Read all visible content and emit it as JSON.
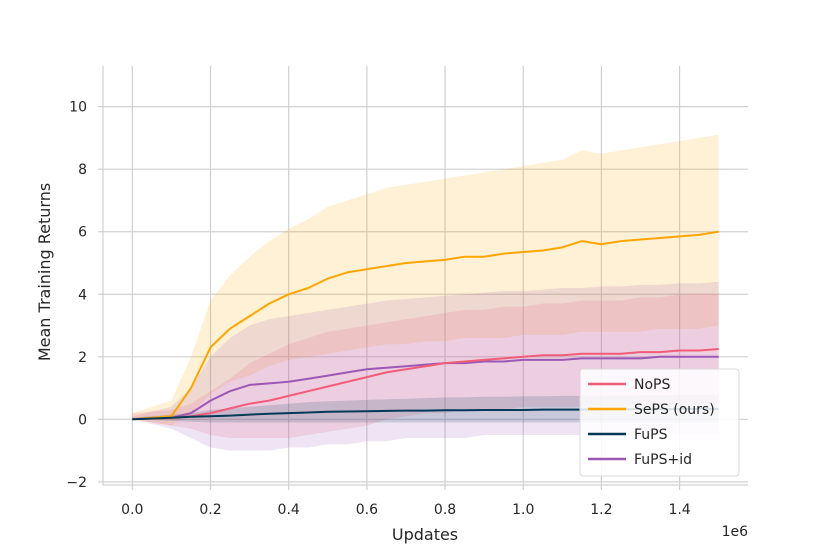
{
  "chart_data": {
    "type": "line",
    "title": "",
    "xlabel": "Updates",
    "ylabel": "Mean Training Returns",
    "x_offset_label": "1e6",
    "xlim": [
      -0.075,
      1.575
    ],
    "ylim": [
      -2.1,
      11.3
    ],
    "x_ticks": [
      0.0,
      0.2,
      0.4,
      0.6,
      0.8,
      1.0,
      1.2,
      1.4
    ],
    "x_tick_labels": [
      "0.0",
      "0.2",
      "0.4",
      "0.6",
      "0.8",
      "1.0",
      "1.2",
      "1.4"
    ],
    "y_ticks": [
      -2,
      0,
      2,
      4,
      6,
      8,
      10
    ],
    "y_tick_labels": [
      "−2",
      "0",
      "2",
      "4",
      "6",
      "8",
      "10"
    ],
    "grid": true,
    "legend_position": "bottom-right",
    "series": [
      {
        "name": "NoPS",
        "color": "#f25c78",
        "x": [
          0.0,
          0.1,
          0.15,
          0.2,
          0.25,
          0.3,
          0.35,
          0.4,
          0.45,
          0.5,
          0.55,
          0.6,
          0.65,
          0.7,
          0.75,
          0.8,
          0.85,
          0.9,
          0.95,
          1.0,
          1.05,
          1.1,
          1.15,
          1.2,
          1.25,
          1.3,
          1.35,
          1.4,
          1.45,
          1.5
        ],
        "values": [
          0.0,
          0.05,
          0.1,
          0.2,
          0.35,
          0.5,
          0.6,
          0.75,
          0.9,
          1.05,
          1.2,
          1.35,
          1.5,
          1.6,
          1.7,
          1.8,
          1.85,
          1.9,
          1.95,
          2.0,
          2.05,
          2.05,
          2.1,
          2.1,
          2.1,
          2.15,
          2.15,
          2.2,
          2.2,
          2.25
        ],
        "lower": [
          0.0,
          -0.2,
          -0.3,
          -0.5,
          -0.6,
          -0.6,
          -0.6,
          -0.6,
          -0.5,
          -0.4,
          -0.3,
          -0.2,
          0.0,
          0.1,
          0.2,
          0.2,
          0.3,
          0.3,
          0.3,
          0.4,
          0.4,
          0.4,
          0.4,
          0.5,
          0.5,
          0.5,
          0.5,
          0.5,
          0.5,
          0.5
        ],
        "upper": [
          0.2,
          0.3,
          0.5,
          0.9,
          1.3,
          1.8,
          2.1,
          2.4,
          2.6,
          2.8,
          2.9,
          3.0,
          3.1,
          3.2,
          3.3,
          3.4,
          3.5,
          3.5,
          3.6,
          3.6,
          3.7,
          3.7,
          3.8,
          3.8,
          3.8,
          3.9,
          3.9,
          4.0,
          4.0,
          4.0
        ]
      },
      {
        "name": "SePS (ours)",
        "color": "#ffa500",
        "x": [
          0.0,
          0.1,
          0.15,
          0.2,
          0.25,
          0.3,
          0.35,
          0.4,
          0.45,
          0.5,
          0.55,
          0.6,
          0.65,
          0.7,
          0.75,
          0.8,
          0.85,
          0.9,
          0.95,
          1.0,
          1.05,
          1.1,
          1.15,
          1.2,
          1.25,
          1.3,
          1.35,
          1.4,
          1.45,
          1.5
        ],
        "values": [
          0.0,
          0.1,
          1.0,
          2.3,
          2.9,
          3.3,
          3.7,
          4.0,
          4.2,
          4.5,
          4.7,
          4.8,
          4.9,
          5.0,
          5.05,
          5.1,
          5.2,
          5.2,
          5.3,
          5.35,
          5.4,
          5.5,
          5.7,
          5.6,
          5.7,
          5.75,
          5.8,
          5.85,
          5.9,
          6.0
        ],
        "lower": [
          0.0,
          -0.2,
          0.2,
          0.8,
          1.2,
          1.4,
          1.7,
          1.9,
          2.0,
          2.1,
          2.2,
          2.3,
          2.4,
          2.4,
          2.5,
          2.5,
          2.6,
          2.6,
          2.6,
          2.7,
          2.7,
          2.7,
          2.8,
          2.8,
          2.8,
          2.8,
          2.9,
          2.9,
          2.9,
          3.0
        ],
        "upper": [
          0.2,
          0.6,
          2.0,
          3.8,
          4.6,
          5.2,
          5.7,
          6.1,
          6.4,
          6.8,
          7.0,
          7.2,
          7.4,
          7.5,
          7.6,
          7.7,
          7.8,
          7.9,
          8.0,
          8.1,
          8.2,
          8.3,
          8.6,
          8.5,
          8.6,
          8.7,
          8.8,
          8.9,
          9.0,
          9.1
        ]
      },
      {
        "name": "FuPS",
        "color": "#003a57",
        "x": [
          0.0,
          0.1,
          0.15,
          0.2,
          0.25,
          0.3,
          0.35,
          0.4,
          0.45,
          0.5,
          0.55,
          0.6,
          0.65,
          0.7,
          0.75,
          0.8,
          0.85,
          0.9,
          0.95,
          1.0,
          1.05,
          1.1,
          1.15,
          1.2,
          1.25,
          1.3,
          1.35,
          1.4,
          1.45,
          1.5
        ],
        "values": [
          0.0,
          0.05,
          0.08,
          0.1,
          0.12,
          0.15,
          0.18,
          0.2,
          0.22,
          0.24,
          0.25,
          0.26,
          0.27,
          0.28,
          0.28,
          0.29,
          0.29,
          0.3,
          0.3,
          0.3,
          0.31,
          0.31,
          0.31,
          0.32,
          0.32,
          0.32,
          0.32,
          0.33,
          0.33,
          0.33
        ],
        "lower": [
          0.0,
          -0.05,
          -0.08,
          -0.1,
          -0.1,
          -0.1,
          -0.1,
          -0.1,
          -0.1,
          -0.1,
          -0.1,
          -0.1,
          -0.1,
          -0.1,
          -0.1,
          -0.1,
          -0.1,
          -0.1,
          -0.1,
          -0.1,
          -0.1,
          -0.1,
          -0.1,
          -0.1,
          -0.1,
          -0.1,
          -0.1,
          -0.1,
          -0.1,
          -0.1
        ],
        "upper": [
          0.05,
          0.15,
          0.2,
          0.3,
          0.35,
          0.4,
          0.45,
          0.5,
          0.55,
          0.58,
          0.6,
          0.62,
          0.64,
          0.66,
          0.68,
          0.7,
          0.7,
          0.72,
          0.72,
          0.74,
          0.74,
          0.75,
          0.75,
          0.76,
          0.76,
          0.77,
          0.77,
          0.78,
          0.78,
          0.78
        ]
      },
      {
        "name": "FuPS+id",
        "color": "#9b59b6",
        "x": [
          0.0,
          0.1,
          0.15,
          0.2,
          0.25,
          0.3,
          0.35,
          0.4,
          0.45,
          0.5,
          0.55,
          0.6,
          0.65,
          0.7,
          0.75,
          0.8,
          0.85,
          0.9,
          0.95,
          1.0,
          1.05,
          1.1,
          1.15,
          1.2,
          1.25,
          1.3,
          1.35,
          1.4,
          1.45,
          1.5
        ],
        "values": [
          0.0,
          0.05,
          0.2,
          0.6,
          0.9,
          1.1,
          1.15,
          1.2,
          1.3,
          1.4,
          1.5,
          1.6,
          1.65,
          1.7,
          1.75,
          1.8,
          1.8,
          1.85,
          1.85,
          1.9,
          1.9,
          1.9,
          1.95,
          1.95,
          1.95,
          1.95,
          2.0,
          2.0,
          2.0,
          2.0
        ],
        "lower": [
          0.0,
          -0.3,
          -0.6,
          -0.9,
          -1.0,
          -1.0,
          -1.0,
          -0.9,
          -0.9,
          -0.8,
          -0.8,
          -0.7,
          -0.7,
          -0.6,
          -0.6,
          -0.6,
          -0.6,
          -0.5,
          -0.5,
          -0.5,
          -0.5,
          -0.5,
          -0.5,
          -0.5,
          -0.5,
          -0.5,
          -0.5,
          -0.5,
          -0.5,
          -0.5
        ],
        "upper": [
          0.1,
          0.4,
          1.0,
          2.0,
          2.6,
          3.0,
          3.2,
          3.3,
          3.4,
          3.5,
          3.6,
          3.7,
          3.8,
          3.85,
          3.9,
          3.95,
          4.0,
          4.05,
          4.1,
          4.1,
          4.15,
          4.2,
          4.2,
          4.25,
          4.25,
          4.3,
          4.3,
          4.35,
          4.35,
          4.4
        ]
      }
    ]
  }
}
